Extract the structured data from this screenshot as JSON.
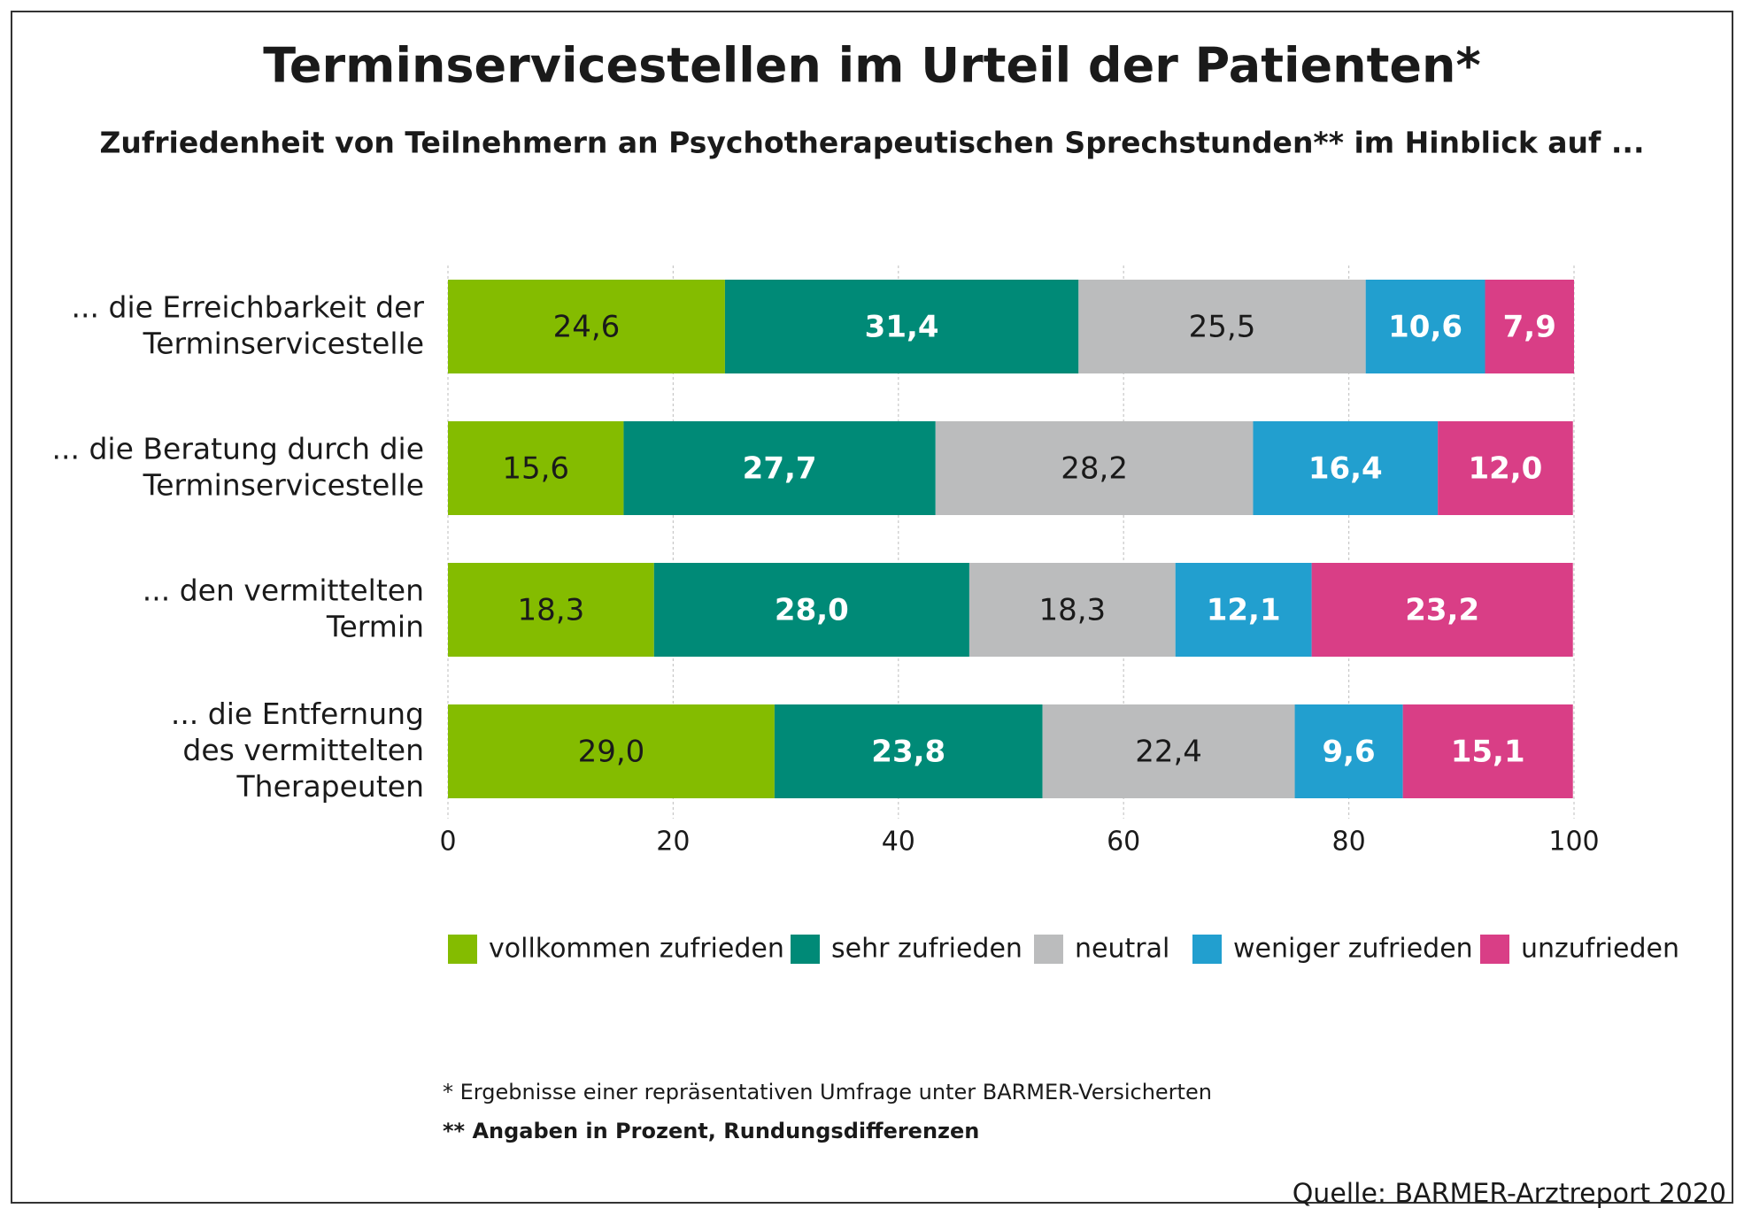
{
  "chart_data": {
    "type": "stacked-bar-horizontal",
    "title": "Terminservicestellen im Urteil der Patienten*",
    "subtitle": "Zufriedenheit von Teilnehmern an Psychotherapeutischen Sprechstunden** im Hinblick auf ...",
    "categories": [
      "... die Erreichbarkeit der\nTerminservicestelle",
      "... die Beratung durch die\nTerminservicestelle",
      "... den vermittelten\nTermin",
      "... die Entfernung\ndes vermittelten\nTherapeuten"
    ],
    "series": [
      {
        "name": "vollkommen zufrieden",
        "color": "#84bc00",
        "label_color": "#1a1a1a",
        "values": [
          24.6,
          15.6,
          18.3,
          29.0
        ],
        "value_labels": [
          "24,6",
          "15,6",
          "18,3",
          "29,0"
        ]
      },
      {
        "name": "sehr zufrieden",
        "color": "#008a77",
        "label_color": "#ffffff",
        "values": [
          31.4,
          27.7,
          28.0,
          23.8
        ],
        "value_labels": [
          "31,4",
          "27,7",
          "28,0",
          "23,8"
        ]
      },
      {
        "name": "neutral",
        "color": "#bbbcbd",
        "label_color": "#1a1a1a",
        "values": [
          25.5,
          28.2,
          18.3,
          22.4
        ],
        "value_labels": [
          "25,5",
          "28,2",
          "18,3",
          "22,4"
        ]
      },
      {
        "name": "weniger zufrieden",
        "color": "#229fcf",
        "label_color": "#ffffff",
        "values": [
          10.6,
          16.4,
          12.1,
          9.6
        ],
        "value_labels": [
          "10,6",
          "16,4",
          "12,1",
          "9,6"
        ]
      },
      {
        "name": "unzufrieden",
        "color": "#d93e86",
        "label_color": "#ffffff",
        "values": [
          7.9,
          12.0,
          23.2,
          15.1
        ],
        "value_labels": [
          "7,9",
          "12,0",
          "23,2",
          "15,1"
        ]
      }
    ],
    "xlim": [
      0,
      100
    ],
    "xticks": [
      0,
      20,
      40,
      60,
      80,
      100
    ],
    "grid": true,
    "legend": "bottom",
    "footnotes": [
      "* Ergebnisse einer repräsentativen Umfrage unter BARMER-Versicherten",
      "** Angaben in Prozent, Rundungsdifferenzen"
    ],
    "source": "Quelle: BARMER-Arztreport 2020"
  }
}
